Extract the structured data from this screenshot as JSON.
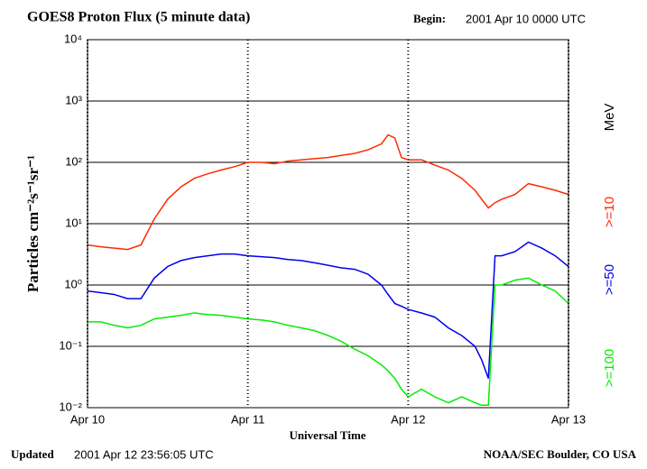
{
  "chart_data": {
    "type": "line",
    "title": "GOES8 Proton Flux (5 minute data)",
    "begin_label": "Begin:",
    "begin_value": "2001 Apr 10 0000 UTC",
    "updated_label": "Updated",
    "updated_value": "2001 Apr 12 23:56:05 UTC",
    "source": "NOAA/SEC Boulder, CO USA",
    "x_label": "Universal Time",
    "y_label": "Particles cm⁻²s⁻¹sr⁻¹",
    "unit_label": "MeV",
    "log_y": true,
    "grid": true,
    "xlim": [
      0,
      72
    ],
    "xticks": [
      {
        "value": 0,
        "label": "Apr 10"
      },
      {
        "value": 24,
        "label": "Apr 11"
      },
      {
        "value": 48,
        "label": "Apr 12"
      },
      {
        "value": 72,
        "label": "Apr 13"
      }
    ],
    "ylim": [
      0.01,
      10000
    ],
    "yticks": [
      {
        "value": 0.01,
        "label": "10⁻²"
      },
      {
        "value": 0.1,
        "label": "10⁻¹"
      },
      {
        "value": 1,
        "label": "10⁰"
      },
      {
        "value": 10,
        "label": "10¹"
      },
      {
        "value": 100,
        "label": "10²"
      },
      {
        "value": 1000,
        "label": "10³"
      },
      {
        "value": 10000,
        "label": "10⁴"
      }
    ],
    "x": [
      0,
      2,
      4,
      6,
      8,
      10,
      12,
      14,
      16,
      18,
      20,
      22,
      24,
      26,
      28,
      30,
      32,
      34,
      36,
      38,
      40,
      42,
      44,
      45,
      46,
      47,
      48,
      50,
      52,
      54,
      56,
      58,
      59,
      60,
      61,
      62,
      64,
      66,
      68,
      70,
      72
    ],
    "series": [
      {
        "name": ">=10",
        "color": "#ff2a00",
        "values": [
          4.5,
          4.2,
          4.0,
          3.8,
          4.5,
          12,
          25,
          40,
          55,
          65,
          75,
          85,
          100,
          100,
          95,
          105,
          110,
          115,
          120,
          130,
          140,
          160,
          200,
          280,
          250,
          120,
          110,
          110,
          90,
          75,
          55,
          35,
          25,
          18,
          22,
          25,
          30,
          45,
          40,
          35,
          30
        ]
      },
      {
        "name": ">=50",
        "color": "#0000ee",
        "values": [
          0.8,
          0.75,
          0.7,
          0.6,
          0.6,
          1.3,
          2.0,
          2.5,
          2.8,
          3.0,
          3.2,
          3.2,
          3.0,
          2.9,
          2.8,
          2.6,
          2.5,
          2.3,
          2.1,
          1.9,
          1.8,
          1.5,
          1.0,
          0.7,
          0.5,
          0.45,
          0.4,
          0.35,
          0.3,
          0.2,
          0.15,
          0.1,
          0.06,
          0.03,
          3.0,
          3.0,
          3.5,
          5.0,
          4.0,
          3.0,
          2.0
        ]
      },
      {
        "name": ">=100",
        "color": "#00ee00",
        "values": [
          0.25,
          0.25,
          0.22,
          0.2,
          0.22,
          0.28,
          0.3,
          0.32,
          0.35,
          0.33,
          0.32,
          0.3,
          0.28,
          0.27,
          0.25,
          0.22,
          0.2,
          0.18,
          0.15,
          0.12,
          0.09,
          0.07,
          0.05,
          0.04,
          0.03,
          0.02,
          0.015,
          0.02,
          0.015,
          0.012,
          0.015,
          0.012,
          0.011,
          0.011,
          1.0,
          1.0,
          1.2,
          1.3,
          1.0,
          0.8,
          0.5
        ]
      }
    ]
  }
}
